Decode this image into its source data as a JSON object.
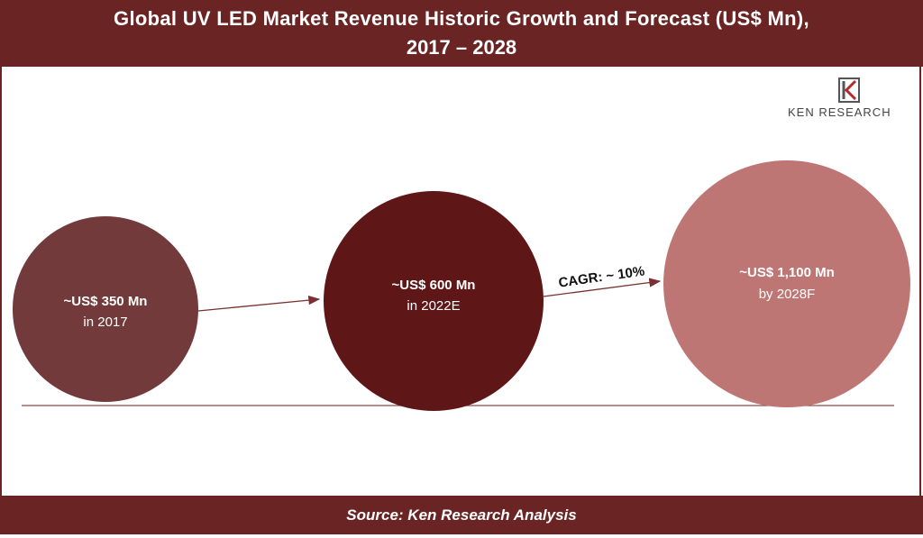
{
  "header": {
    "title_line1": "Global UV LED Market Revenue Historic Growth and Forecast (US$ Mn),",
    "title_line2": "2017 – 2028"
  },
  "footer": {
    "source": "Source: Ken Research Analysis"
  },
  "logo": {
    "brand": "KEN RESEARCH"
  },
  "colors": {
    "header_bg": "#6b2424",
    "bubble_2017": "#723a3a",
    "bubble_2022": "#5e1616",
    "bubble_2028": "#be7674"
  },
  "chart_data": {
    "type": "bubble",
    "title": "Global UV LED Market Revenue Historic Growth and Forecast (US$ Mn), 2017 – 2028",
    "points": [
      {
        "value_label": "~US$ 350 Mn",
        "period_label": "in 2017",
        "value": 350,
        "year": "2017"
      },
      {
        "value_label": "~US$ 600 Mn",
        "period_label": "in 2022E",
        "value": 600,
        "year": "2022E"
      },
      {
        "value_label": "~US$ 1,100 Mn",
        "period_label": "by 2028F",
        "value": 1100,
        "year": "2028F"
      }
    ],
    "annotation": "CAGR: ~ 10%"
  }
}
